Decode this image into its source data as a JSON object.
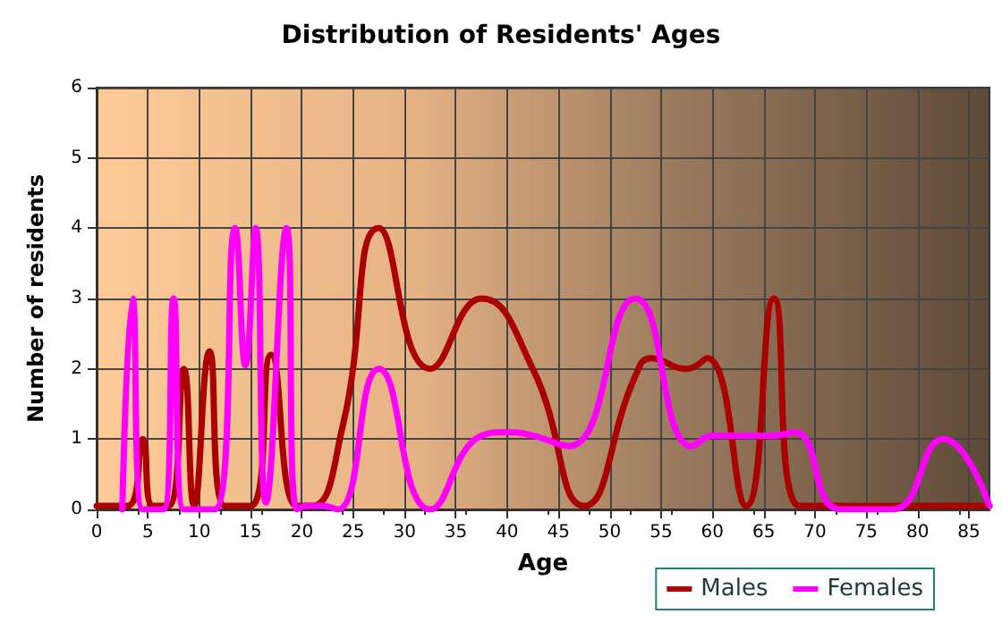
{
  "chart_data": {
    "type": "line",
    "title": "Distribution of Residents' Ages",
    "xlabel": "Age",
    "ylabel": "Number of residents",
    "xlim": [
      0,
      87
    ],
    "xticks": [
      0,
      5,
      10,
      15,
      20,
      25,
      30,
      35,
      40,
      45,
      50,
      55,
      60,
      65,
      70,
      75,
      80,
      85
    ],
    "ylim": [
      0,
      6
    ],
    "yticks": [
      0,
      1,
      2,
      3,
      4,
      5,
      6
    ],
    "grid": true,
    "legend": "bottom right",
    "marker": "none",
    "line_style": "solid",
    "series": [
      {
        "name": "Males",
        "color": "#aa0000",
        "x": [
          0,
          3,
          4.5,
          5.5,
          7,
          8.5,
          9.5,
          11,
          12.5,
          15,
          17,
          19.5,
          21,
          24,
          27.5,
          32.5,
          37.5,
          42.5,
          47.5,
          52.5,
          54,
          57.5,
          59.5,
          63.3,
          66,
          68.5,
          87
        ],
        "values": [
          0.05,
          0.05,
          1,
          0.05,
          0.05,
          2,
          0.05,
          2.25,
          0.05,
          0.05,
          2.2,
          0.05,
          0.05,
          1.2,
          4,
          2,
          3,
          2,
          0.05,
          1.9,
          2.15,
          2,
          2.15,
          0.05,
          3,
          0.05,
          0.05
        ]
      },
      {
        "name": "Females",
        "color": "#ff00ff",
        "x": [
          2.5,
          3.5,
          4.5,
          6.5,
          7.5,
          8.5,
          11.5,
          13.5,
          14.5,
          15.5,
          16.5,
          18.5,
          19.5,
          20.5,
          22,
          23.5,
          27.5,
          32.5,
          37.5,
          40,
          42.5,
          46,
          52.5,
          58,
          60,
          66,
          68,
          72.5,
          77.5,
          82.5,
          87
        ],
        "values": [
          0,
          3,
          0,
          0,
          3,
          0,
          0,
          4,
          2.05,
          4,
          0.1,
          4,
          0,
          0.05,
          0.05,
          0,
          2,
          0,
          1.05,
          1.1,
          1.05,
          0.9,
          3,
          0.9,
          1.05,
          1.05,
          1.1,
          0,
          0,
          1,
          0.05
        ]
      }
    ]
  }
}
